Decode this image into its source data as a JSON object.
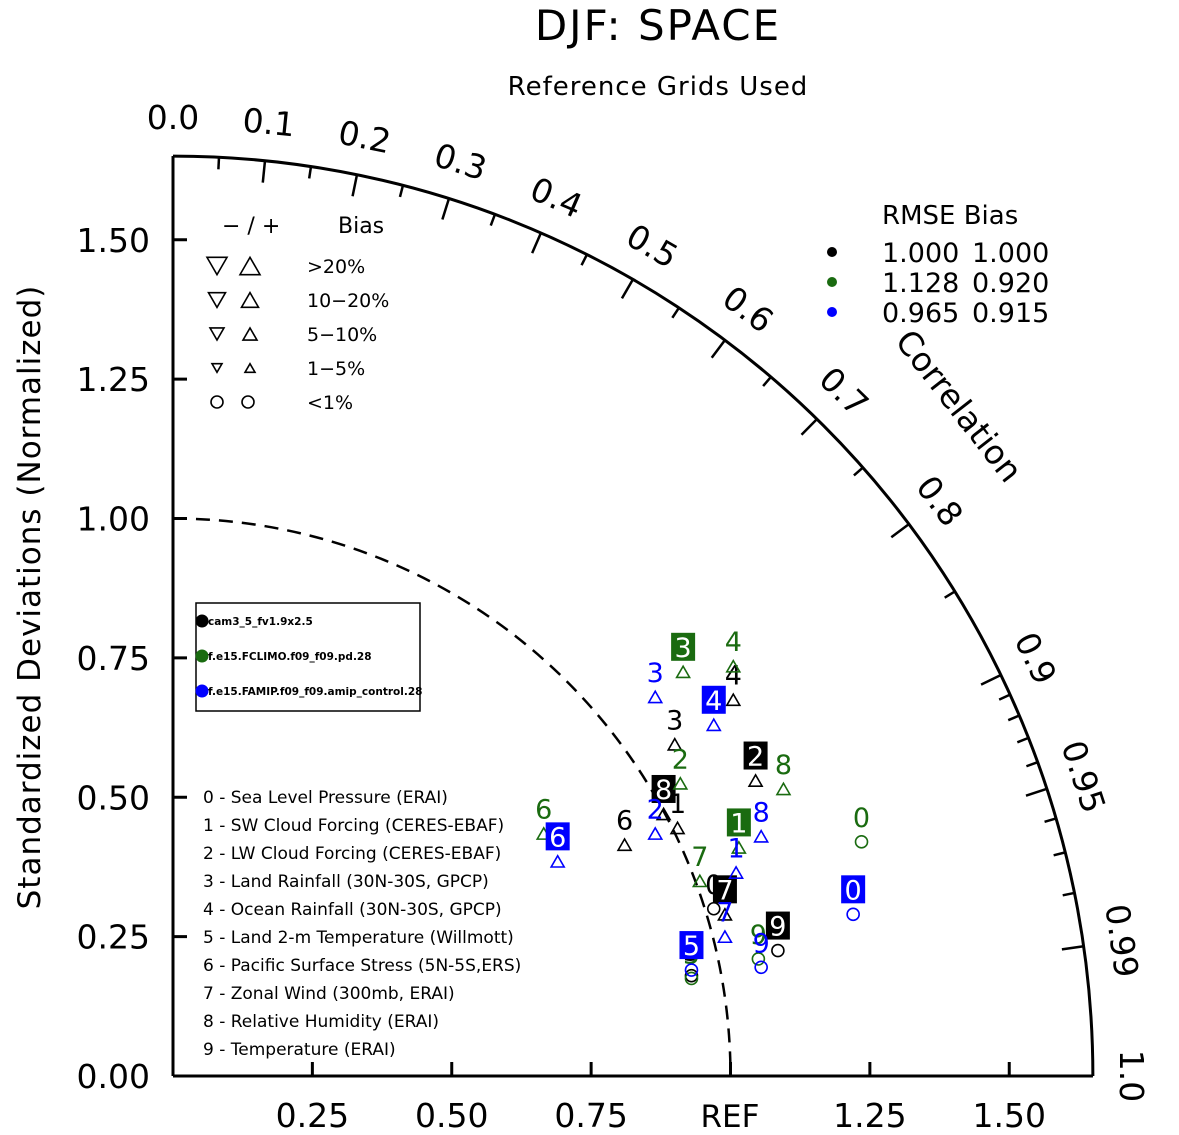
{
  "chart_data": {
    "type": "scatter",
    "subtype": "taylor-diagram",
    "title": "DJF: SPACE",
    "subtitle": "Reference Grids Used",
    "ylabel": "Standardized Deviations (Normalized)",
    "arc_label": "Correlation",
    "ref_label": "REF",
    "radius_max": 1.65,
    "grid": false,
    "y_ticks": [
      "0.00",
      "0.25",
      "0.50",
      "0.75",
      "1.00",
      "1.25",
      "1.50"
    ],
    "x_ticks": [
      "0.25",
      "0.50",
      "0.75",
      "1.25",
      "1.50"
    ],
    "correlation_labels": [
      "0.0",
      "0.1",
      "0.2",
      "0.3",
      "0.4",
      "0.5",
      "0.6",
      "0.7",
      "0.8",
      "0.9",
      "0.95",
      "0.99",
      "1.0"
    ],
    "bias_legend": {
      "header_symbols": "− / +",
      "header_label": "Bias",
      "rows": [
        {
          "label": ">20%",
          "size": "xl",
          "shape": "triangle"
        },
        {
          "label": "10−20%",
          "size": "l",
          "shape": "triangle"
        },
        {
          "label": "5−10%",
          "size": "m",
          "shape": "triangle"
        },
        {
          "label": "1−5%",
          "size": "s",
          "shape": "triangle"
        },
        {
          "label": "<1%",
          "size": "m",
          "shape": "circle"
        }
      ]
    },
    "rmse_legend": {
      "header": "RMSE  Bias",
      "rows": [
        {
          "color": "#000000",
          "rmse": "1.000",
          "bias": "1.000"
        },
        {
          "color": "#1a6b10",
          "rmse": "1.128",
          "bias": "0.920"
        },
        {
          "color": "#0000ff",
          "rmse": "0.965",
          "bias": "0.915"
        }
      ]
    },
    "series": [
      {
        "name": "cam3_5_fv1.9x2.5",
        "color": "#000000"
      },
      {
        "name": "f.e15.FCLIMO.f09_f09.pd.28",
        "color": "#1a6b10"
      },
      {
        "name": "f.e15.FAMIP.f09_f09.amip_control.28",
        "color": "#0000ff"
      }
    ],
    "variables": [
      "0 - Sea Level Pressure (ERAI)",
      "1 - SW Cloud Forcing (CERES-EBAF)",
      "2 - LW Cloud Forcing (CERES-EBAF)",
      "3 - Land Rainfall (30N-30S, GPCP)",
      "4 - Ocean Rainfall (30N-30S, GPCP)",
      "5 - Land 2-m Temperature (Willmott)",
      "6 - Pacific Surface Stress (5N-5S,ERS)",
      "7 - Zonal Wind (300mb, ERAI)",
      "8 - Relative Humidity (ERAI)",
      "9 - Temperature (ERAI)"
    ],
    "points": [
      {
        "s": 0,
        "v": "0",
        "x": 0.97,
        "y": 0.3,
        "marker": "circle",
        "box": false
      },
      {
        "s": 0,
        "v": "1",
        "x": 0.905,
        "y": 0.445,
        "marker": "tri-up",
        "box": false
      },
      {
        "s": 0,
        "v": "2",
        "x": 1.045,
        "y": 0.53,
        "marker": "tri-up",
        "box": true
      },
      {
        "s": 0,
        "v": "3",
        "x": 0.9,
        "y": 0.595,
        "marker": "tri-up",
        "box": false
      },
      {
        "s": 0,
        "v": "4",
        "x": 1.005,
        "y": 0.675,
        "marker": "tri-up",
        "box": false
      },
      {
        "s": 0,
        "v": "5",
        "x": 0.93,
        "y": 0.18,
        "marker": "circle",
        "box": false
      },
      {
        "s": 0,
        "v": "6",
        "x": 0.81,
        "y": 0.415,
        "marker": "tri-up",
        "box": false
      },
      {
        "s": 0,
        "v": "7",
        "x": 0.99,
        "y": 0.29,
        "marker": "tri-up",
        "box": true
      },
      {
        "s": 0,
        "v": "8",
        "x": 0.88,
        "y": 0.47,
        "marker": "tri-up",
        "box": true
      },
      {
        "s": 0,
        "v": "9",
        "x": 1.085,
        "y": 0.225,
        "marker": "circle",
        "box": true
      },
      {
        "s": 1,
        "v": "0",
        "x": 1.235,
        "y": 0.42,
        "marker": "circle",
        "box": false
      },
      {
        "s": 1,
        "v": "1",
        "x": 1.015,
        "y": 0.41,
        "marker": "tri-up",
        "box": true
      },
      {
        "s": 1,
        "v": "2",
        "x": 0.91,
        "y": 0.525,
        "marker": "tri-up",
        "box": false
      },
      {
        "s": 1,
        "v": "3",
        "x": 0.915,
        "y": 0.725,
        "marker": "tri-up",
        "box": true
      },
      {
        "s": 1,
        "v": "4",
        "x": 1.005,
        "y": 0.735,
        "marker": "tri-up",
        "box": false
      },
      {
        "s": 1,
        "v": "5",
        "x": 0.93,
        "y": 0.175,
        "marker": "circle",
        "box": false
      },
      {
        "s": 1,
        "v": "6",
        "x": 0.665,
        "y": 0.435,
        "marker": "tri-up",
        "box": false
      },
      {
        "s": 1,
        "v": "7",
        "x": 0.945,
        "y": 0.35,
        "marker": "tri-up",
        "box": false
      },
      {
        "s": 1,
        "v": "8",
        "x": 1.095,
        "y": 0.515,
        "marker": "tri-up",
        "box": false
      },
      {
        "s": 1,
        "v": "9",
        "x": 1.05,
        "y": 0.21,
        "marker": "circle",
        "box": false
      },
      {
        "s": 2,
        "v": "0",
        "x": 1.22,
        "y": 0.29,
        "marker": "circle",
        "box": true
      },
      {
        "s": 2,
        "v": "1",
        "x": 1.01,
        "y": 0.365,
        "marker": "tri-up",
        "box": false
      },
      {
        "s": 2,
        "v": "2",
        "x": 0.865,
        "y": 0.435,
        "marker": "tri-up",
        "box": false
      },
      {
        "s": 2,
        "v": "3",
        "x": 0.865,
        "y": 0.68,
        "marker": "tri-up",
        "box": false
      },
      {
        "s": 2,
        "v": "4",
        "x": 0.97,
        "y": 0.63,
        "marker": "tri-up",
        "box": true
      },
      {
        "s": 2,
        "v": "5",
        "x": 0.93,
        "y": 0.19,
        "marker": "circle",
        "box": true
      },
      {
        "s": 2,
        "v": "6",
        "x": 0.69,
        "y": 0.385,
        "marker": "tri-up",
        "box": true
      },
      {
        "s": 2,
        "v": "7",
        "x": 0.99,
        "y": 0.25,
        "marker": "tri-up",
        "box": false
      },
      {
        "s": 2,
        "v": "8",
        "x": 1.055,
        "y": 0.43,
        "marker": "tri-up",
        "box": false
      },
      {
        "s": 2,
        "v": "9",
        "x": 1.055,
        "y": 0.195,
        "marker": "circle",
        "box": false
      }
    ]
  }
}
